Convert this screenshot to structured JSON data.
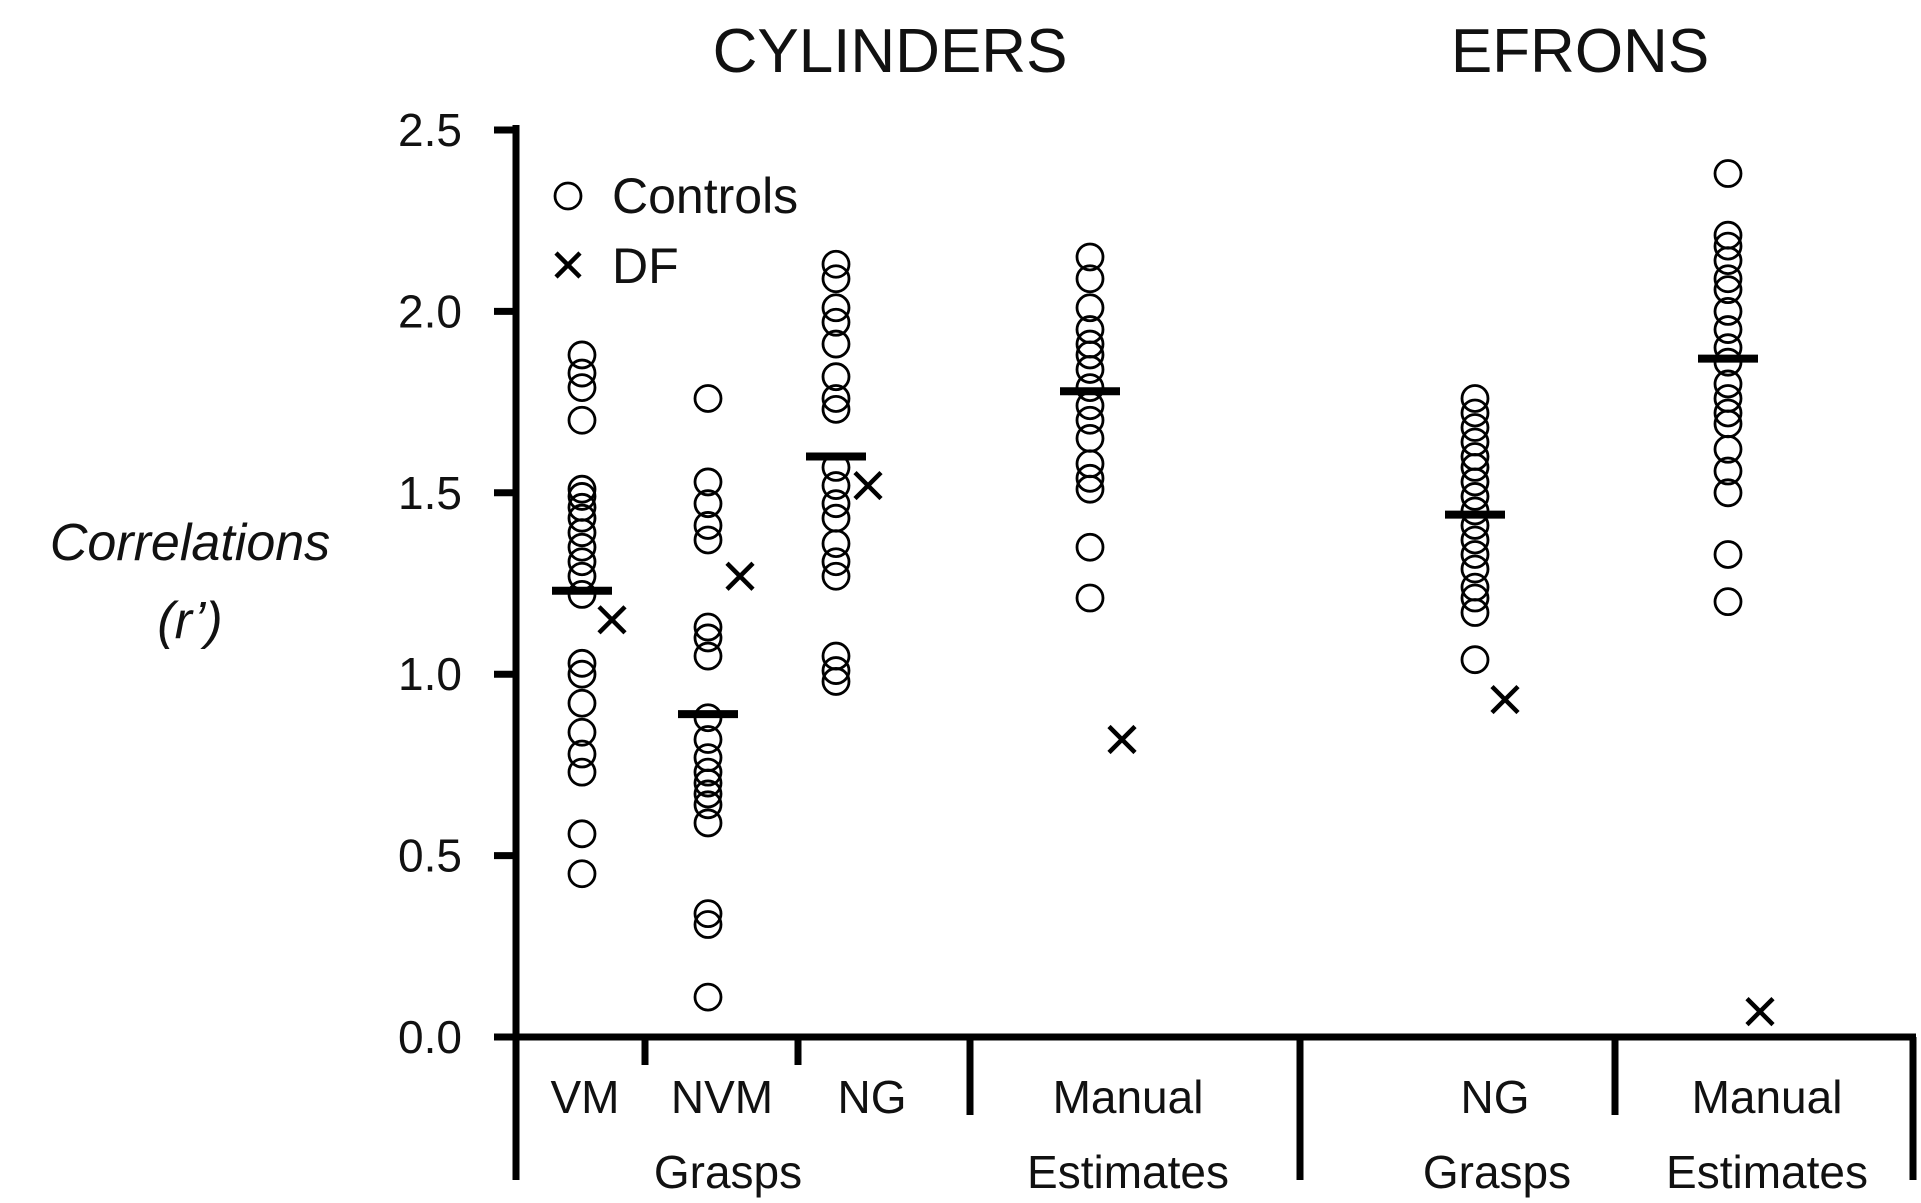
{
  "chart_data": {
    "type": "scatter",
    "titles": [
      "CYLINDERS",
      "EFRONS"
    ],
    "ylabel_line1": "Correlations",
    "ylabel_line2": "(r’)",
    "ylim": [
      0.0,
      2.5
    ],
    "yticks": [
      "0.0",
      "0.5",
      "1.0",
      "1.5",
      "2.0",
      "2.5"
    ],
    "legend": {
      "placement": "top-left",
      "controls": "Controls",
      "df": "DF"
    },
    "group_labels": {
      "cyl_grasps": "Grasps",
      "cyl_manual_1": "Manual",
      "cyl_manual_2": "Estimates",
      "efr_grasps": "Grasps",
      "efr_manual_1": "Manual",
      "efr_manual_2": "Estimates"
    },
    "categories": [
      {
        "label": "VM",
        "controls": [
          1.88,
          1.83,
          1.79,
          1.7,
          1.51,
          1.49,
          1.46,
          1.43,
          1.39,
          1.35,
          1.31,
          1.27,
          1.22,
          1.03,
          1.0,
          0.92,
          0.84,
          0.78,
          0.73,
          0.56,
          0.45
        ],
        "mean": 1.23,
        "df": 1.15
      },
      {
        "label": "NVM",
        "controls": [
          1.76,
          1.53,
          1.47,
          1.41,
          1.37,
          1.13,
          1.1,
          1.05,
          0.88,
          0.82,
          0.77,
          0.73,
          0.7,
          0.67,
          0.64,
          0.59,
          0.34,
          0.31,
          0.11
        ],
        "mean": 0.89,
        "df": 1.27
      },
      {
        "label": "NG",
        "controls": [
          2.13,
          2.09,
          2.01,
          1.97,
          1.91,
          1.82,
          1.76,
          1.73,
          1.57,
          1.52,
          1.47,
          1.43,
          1.36,
          1.31,
          1.27,
          1.05,
          1.01,
          0.98
        ],
        "mean": 1.6,
        "df": 1.52
      },
      {
        "label": "",
        "controls": [
          2.15,
          2.09,
          2.01,
          1.95,
          1.91,
          1.88,
          1.84,
          1.79,
          1.74,
          1.7,
          1.65,
          1.58,
          1.54,
          1.51,
          1.35,
          1.21
        ],
        "mean": 1.78,
        "df": 0.82
      },
      {
        "label": "NG",
        "controls": [
          1.76,
          1.72,
          1.68,
          1.64,
          1.6,
          1.57,
          1.53,
          1.49,
          1.45,
          1.41,
          1.37,
          1.33,
          1.29,
          1.24,
          1.21,
          1.17,
          1.04
        ],
        "mean": 1.44,
        "df": 0.93
      },
      {
        "label": "",
        "controls": [
          2.38,
          2.21,
          2.18,
          2.14,
          2.09,
          2.06,
          2.0,
          1.95,
          1.9,
          1.86,
          1.8,
          1.76,
          1.72,
          1.69,
          1.62,
          1.56,
          1.5,
          1.33,
          1.2
        ],
        "mean": 1.87,
        "df": 0.07
      }
    ]
  }
}
